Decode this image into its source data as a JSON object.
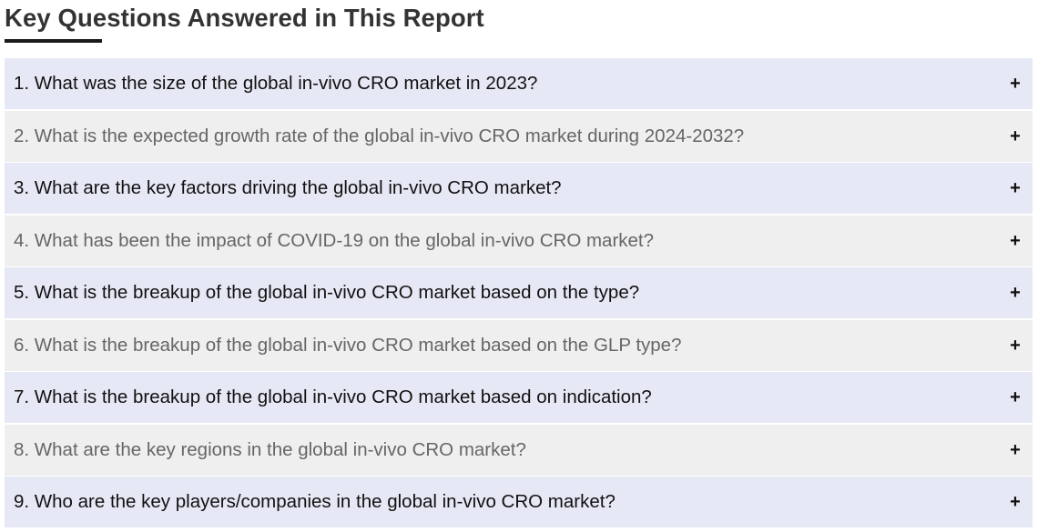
{
  "page": {
    "title": "Key Questions Answered in This Report"
  },
  "faq": {
    "expand_icon": "plus-icon",
    "expand_glyph": "+",
    "items": [
      {
        "question": "1. What was the size of the global in-vivo CRO market in 2023?"
      },
      {
        "question": "2. What is the expected growth rate of the global in-vivo CRO market during 2024-2032?"
      },
      {
        "question": "3. What are the key factors driving the global in-vivo CRO market?"
      },
      {
        "question": "4. What has been the impact of COVID-19 on the global in-vivo CRO market?"
      },
      {
        "question": "5. What is the breakup of the global in-vivo CRO market based on the type?"
      },
      {
        "question": "6. What is the breakup of the global in-vivo CRO market based on the GLP type?"
      },
      {
        "question": "7. What is the breakup of the global in-vivo CRO market based on indication?"
      },
      {
        "question": "8. What are the key regions in the global in-vivo CRO market?"
      },
      {
        "question": "9. Who are the key players/companies in the global in-vivo CRO market?"
      }
    ]
  },
  "colors": {
    "odd_row_bg": "#e6e8f5",
    "even_row_bg": "#efefef",
    "title_text": "#333333",
    "underline": "#1a1a1a"
  }
}
